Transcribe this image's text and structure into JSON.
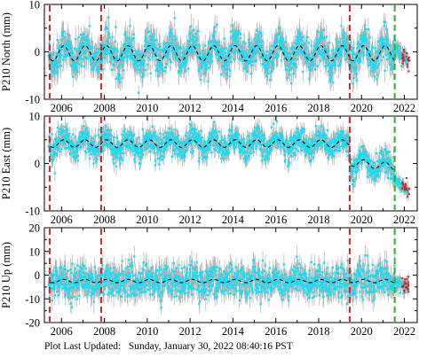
{
  "footer": {
    "label": "Plot Last Updated:",
    "timestamp": "Sunday, January 30, 2022 08:40:16 PST"
  },
  "colors": {
    "observations": "#00e5ff",
    "error_bars": "#b0b0b0",
    "outliers": "#e41a1c",
    "model": "#000000",
    "event_red": "#dc2626",
    "event_green": "#22b822"
  },
  "chart_data": [
    {
      "type": "scatter",
      "ylabel": "P210 North (mm)",
      "xlim": [
        2005.2,
        2022.6
      ],
      "ylim": [
        -10,
        10
      ],
      "x_ticks": [
        2006,
        2008,
        2010,
        2012,
        2014,
        2016,
        2018,
        2020,
        2022
      ],
      "y_ticks": [
        -10,
        0,
        10
      ],
      "grid": false,
      "event_lines": [
        {
          "x": 2005.45,
          "color": "red"
        },
        {
          "x": 2007.85,
          "color": "red"
        },
        {
          "x": 2019.45,
          "color": "red"
        },
        {
          "x": 2021.55,
          "color": "green"
        }
      ],
      "model": {
        "mean": -0.3,
        "seasonal_amplitude": 1.6,
        "offsets": []
      },
      "observation_scatter_sd": 2.5,
      "end_segment": {
        "x": [
          2021.55,
          2022.2
        ],
        "y": [
          0.5,
          -2.0
        ]
      }
    },
    {
      "type": "scatter",
      "ylabel": "P210 East (mm)",
      "xlim": [
        2005.2,
        2022.6
      ],
      "ylim": [
        -10,
        10
      ],
      "x_ticks": [
        2006,
        2008,
        2010,
        2012,
        2014,
        2016,
        2018,
        2020,
        2022
      ],
      "y_ticks": [
        -10,
        0,
        10
      ],
      "grid": false,
      "event_lines": [
        {
          "x": 2005.45,
          "color": "red"
        },
        {
          "x": 2007.85,
          "color": "red"
        },
        {
          "x": 2019.45,
          "color": "red"
        },
        {
          "x": 2021.55,
          "color": "green"
        }
      ],
      "model": {
        "mean": 4.2,
        "seasonal_amplitude": 0.8,
        "offsets": [
          {
            "x": 2019.45,
            "to": 0.3,
            "slope": -0.5
          }
        ]
      },
      "observation_scatter_sd": 1.8,
      "end_segment": {
        "x": [
          2021.55,
          2022.2
        ],
        "y": [
          -3.5,
          -6.0
        ]
      }
    },
    {
      "type": "scatter",
      "ylabel": "P210 Up (mm)",
      "xlim": [
        2005.2,
        2022.6
      ],
      "ylim": [
        -20,
        20
      ],
      "x_ticks": [
        2006,
        2008,
        2010,
        2012,
        2014,
        2016,
        2018,
        2020,
        2022
      ],
      "y_ticks": [
        -20,
        -10,
        0,
        10,
        20
      ],
      "grid": false,
      "event_lines": [
        {
          "x": 2005.45,
          "color": "red"
        },
        {
          "x": 2007.85,
          "color": "red"
        },
        {
          "x": 2019.45,
          "color": "red"
        },
        {
          "x": 2021.55,
          "color": "green"
        }
      ],
      "model": {
        "mean": -2.5,
        "seasonal_amplitude": 0.7,
        "offsets": []
      },
      "observation_scatter_sd": 4.5,
      "end_segment": {
        "x": [
          2021.55,
          2022.2
        ],
        "y": [
          -3.0,
          -5.0
        ]
      }
    }
  ]
}
